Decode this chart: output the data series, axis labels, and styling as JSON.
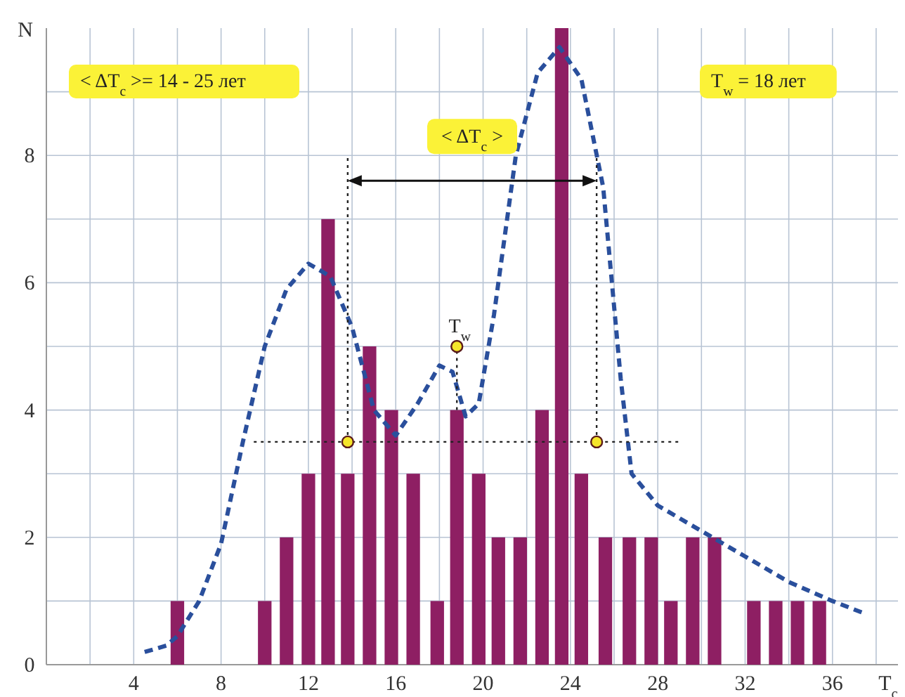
{
  "chart_data": {
    "type": "bar",
    "xlabel": "T$_{c}$",
    "ylabel": "N",
    "xlim": [
      0,
      39
    ],
    "xticks": [
      {
        "value": 2,
        "label": null
      },
      4,
      {
        "value": 6,
        "label": null
      },
      8,
      {
        "value": 10,
        "label": null
      },
      12,
      {
        "value": 14,
        "label": null
      },
      16,
      {
        "value": 18,
        "label": null
      },
      20,
      {
        "value": 22,
        "label": null
      },
      24,
      {
        "value": 26,
        "label": null
      },
      28,
      {
        "value": 30,
        "label": null
      },
      32,
      {
        "value": 34,
        "label": null
      },
      36,
      {
        "value": 38,
        "label": null
      }
    ],
    "ylim": [
      0,
      10
    ],
    "yticks": [
      0,
      {
        "value": 1,
        "label": null
      },
      2,
      {
        "value": 3,
        "label": null
      },
      4,
      {
        "value": 5,
        "label": null
      },
      6,
      {
        "value": 7,
        "label": null
      },
      8,
      {
        "value": 9,
        "label": null
      }
    ],
    "grid": true,
    "series": [
      {
        "color": "#8e1f63",
        "x": [
          6,
          10,
          11,
          12,
          12.9,
          13.8,
          14.8,
          15.8,
          16.8,
          17.9,
          18.8,
          19.8,
          20.7,
          21.7,
          22.7,
          23.6,
          24.5,
          25.6,
          26.7,
          27.7,
          28.6,
          29.6,
          30.6,
          32.4,
          33.4,
          34.4,
          35.4
        ],
        "values": [
          1,
          1,
          2,
          3,
          7,
          3,
          5,
          4,
          3,
          1,
          4,
          3,
          2,
          2,
          4,
          10,
          3,
          2,
          2,
          2,
          1,
          2,
          2,
          1,
          1,
          1,
          1
        ]
      },
      {
        "type": "line",
        "line_style": "dashed",
        "color": "#2a4f9c",
        "x": [
          4.5,
          5.5,
          6,
          7,
          8,
          9,
          10,
          11,
          12,
          13,
          14,
          15,
          16,
          17,
          18,
          18.6,
          19.2,
          19.8,
          20.5,
          21.5,
          22.5,
          23.5,
          24.5,
          25.5,
          26.3,
          26.8,
          28,
          30,
          32,
          34,
          36,
          37.5
        ],
        "values": [
          0.2,
          0.3,
          0.45,
          1,
          1.9,
          3.5,
          5,
          5.9,
          6.3,
          6.1,
          5.3,
          4,
          3.6,
          4.1,
          4.7,
          4.6,
          3.9,
          4.1,
          5.5,
          8,
          9.3,
          9.7,
          9.2,
          7.5,
          4.5,
          3,
          2.5,
          2.1,
          1.7,
          1.3,
          1,
          0.8
        ]
      },
      {
        "type": "line",
        "line_style": "dotted",
        "color": "#222222",
        "x": [
          9.5,
          29
        ],
        "values": [
          3.5,
          3.5
        ]
      },
      {
        "type": "line",
        "line_style": "dotted",
        "color": "#222222",
        "x": [
          13.8,
          13.8
        ],
        "values": [
          3.5,
          8
        ]
      },
      {
        "type": "line",
        "line_style": "dotted",
        "color": "#222222",
        "x": [
          25.2,
          25.2
        ],
        "values": [
          3.5,
          8
        ]
      },
      {
        "type": "line",
        "line_style": "dotted",
        "color": "#222222",
        "x": [
          18.8,
          18.8
        ],
        "values": [
          4,
          5
        ]
      },
      {
        "type": "scatter",
        "marker": "circle",
        "color": "#f5e52a",
        "x": [
          13.8,
          25.2,
          18.8
        ],
        "values": [
          3.5,
          3.5,
          5
        ]
      }
    ],
    "annotations": [
      "< ΔT$_{c}$ >= 14 - 25 лет",
      "T$_{w}$ = 18 лет",
      {
        "text": "T$_{w}$",
        "x": 18.8,
        "y": 5
      },
      "< ΔT$_{c}$ >"
    ]
  }
}
